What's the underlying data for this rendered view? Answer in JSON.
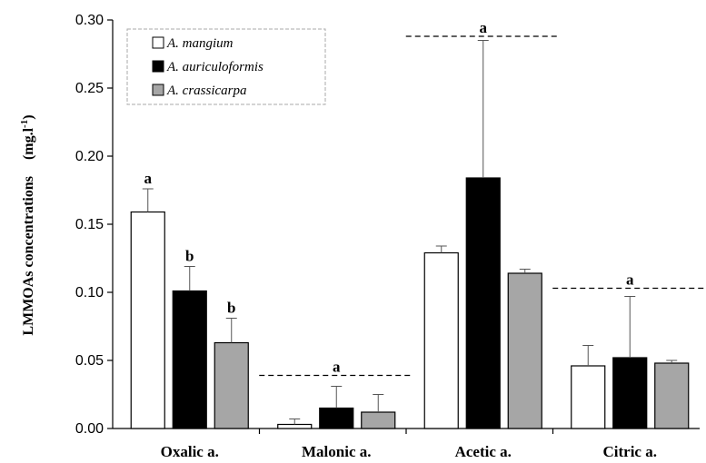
{
  "chart_data": {
    "type": "bar",
    "categories": [
      "Oxalic a.",
      "Malonic a.",
      "Acetic a.",
      "Citric a."
    ],
    "ylabel": "LMMOAs concentrations",
    "ylabel_unit_main": "(mg.l",
    "ylabel_unit_sup": "-1",
    "ylabel_unit_end": ")",
    "ylim": [
      0,
      0.3
    ],
    "yticks": [
      "0.00",
      "0.05",
      "0.10",
      "0.15",
      "0.20",
      "0.25",
      "0.30"
    ],
    "grid": false,
    "legend_position": "top-left",
    "series": [
      {
        "name": "A. mangium",
        "color": "#ffffff",
        "values": [
          0.159,
          0.003,
          0.129,
          0.046
        ],
        "errors": [
          0.017,
          0.004,
          0.005,
          0.015
        ]
      },
      {
        "name": "A. auriculoformis",
        "color": "#000000",
        "values": [
          0.101,
          0.015,
          0.184,
          0.052
        ],
        "errors": [
          0.018,
          0.016,
          0.101,
          0.045
        ]
      },
      {
        "name": "A. crassicarpa",
        "color": "#a6a6a6",
        "values": [
          0.063,
          0.012,
          0.114,
          0.048
        ],
        "errors": [
          0.018,
          0.013,
          0.003,
          0.002
        ]
      }
    ],
    "bar_letters": [
      {
        "category": 0,
        "series": 0,
        "text": "a"
      },
      {
        "category": 0,
        "series": 1,
        "text": "b"
      },
      {
        "category": 0,
        "series": 2,
        "text": "b"
      }
    ],
    "group_letters": [
      {
        "category": 1,
        "text": "a",
        "y": 0.039
      },
      {
        "category": 2,
        "text": "a",
        "y": 0.288
      },
      {
        "category": 3,
        "text": "a",
        "y": 0.103
      }
    ]
  }
}
